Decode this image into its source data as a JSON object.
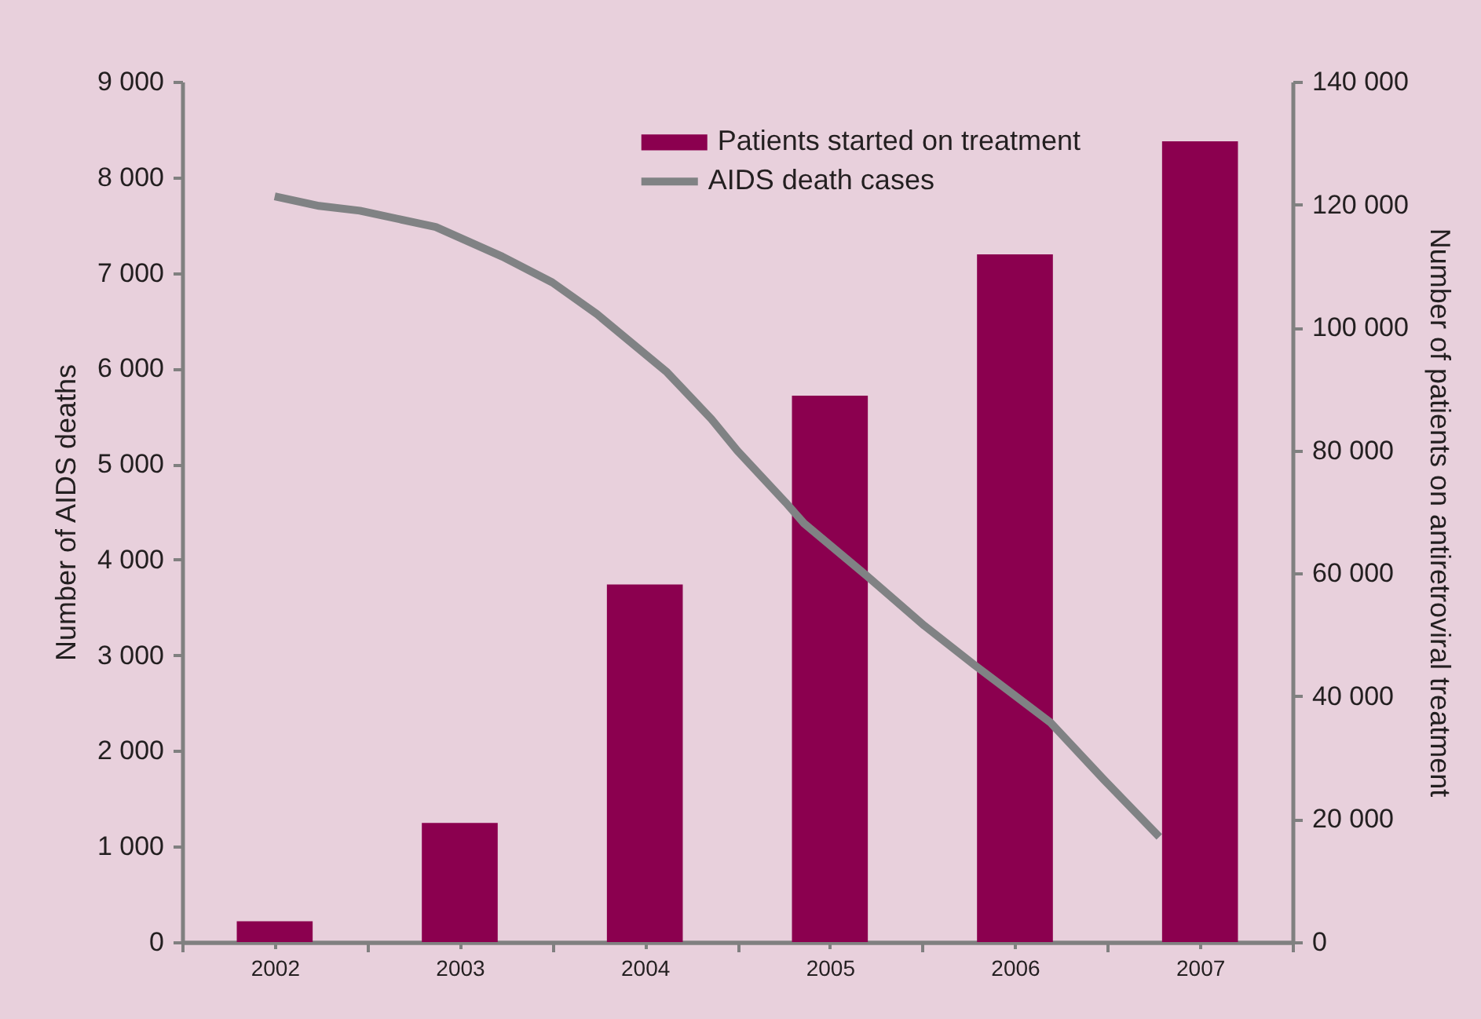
{
  "chart_data": {
    "type": "bar",
    "x": [
      2002,
      2003,
      2004,
      2005,
      2006,
      2007
    ],
    "xlim": [
      2001.5,
      2007.5
    ],
    "xticks": [
      {
        "value": 2001.5,
        "label": null
      },
      2002,
      {
        "value": 2002.5,
        "label": null
      },
      2003,
      {
        "value": 2003.5,
        "label": null
      },
      2004,
      {
        "value": 2004.5,
        "label": null
      },
      2005,
      {
        "value": 2005.5,
        "label": null
      },
      2006,
      {
        "value": 2006.5,
        "label": null
      },
      2007,
      {
        "value": 2007.5,
        "label": null
      }
    ],
    "ylabel": "Number of AIDS deaths",
    "y2label": "Number of patients on antiretroviral treatment",
    "ylim": [
      0,
      9000
    ],
    "yticks": [
      0,
      {
        "value": 1000,
        "label": "1 000"
      },
      {
        "value": 2000,
        "label": "2 000"
      },
      {
        "value": 3000,
        "label": "3 000"
      },
      {
        "value": 4000,
        "label": "4 000"
      },
      {
        "value": 5000,
        "label": "5 000"
      },
      {
        "value": 6000,
        "label": "6 000"
      },
      {
        "value": 7000,
        "label": "7 000"
      },
      {
        "value": 8000,
        "label": "8 000"
      },
      {
        "value": 9000,
        "label": "9 000"
      }
    ],
    "y2lim": [
      0,
      140000
    ],
    "y2ticks": [
      0,
      {
        "value": 20000,
        "label": "20 000"
      },
      {
        "value": 40000,
        "label": "40 000"
      },
      {
        "value": 60000,
        "label": "60 000"
      },
      {
        "value": 80000,
        "label": "80 000"
      },
      {
        "value": 100000,
        "label": "100 000"
      },
      {
        "value": 120000,
        "label": "120 000"
      },
      {
        "value": 140000,
        "label": "140 000"
      }
    ],
    "series": [
      {
        "name": "Patients started on treatment",
        "axis": "y2",
        "color": "#8b004f",
        "values": [
          3400,
          19400,
          58200,
          88900,
          111900,
          130300
        ]
      },
      {
        "name": "AIDS death cases",
        "type": "line",
        "color": "#808284",
        "x": [
          2002.0,
          2002.24,
          2002.46,
          2002.87,
          2003.23,
          2003.5,
          2003.74,
          2004.12,
          2004.36,
          2004.5,
          2004.76,
          2004.86,
          2005.2,
          2005.51,
          2005.78,
          2006.19,
          2006.48,
          2006.78
        ],
        "values": [
          7800,
          7700,
          7650,
          7480,
          7170,
          6900,
          6570,
          5960,
          5470,
          5140,
          4600,
          4380,
          3830,
          3310,
          2900,
          2300,
          1700,
          1100
        ]
      }
    ],
    "legend": "top right"
  }
}
